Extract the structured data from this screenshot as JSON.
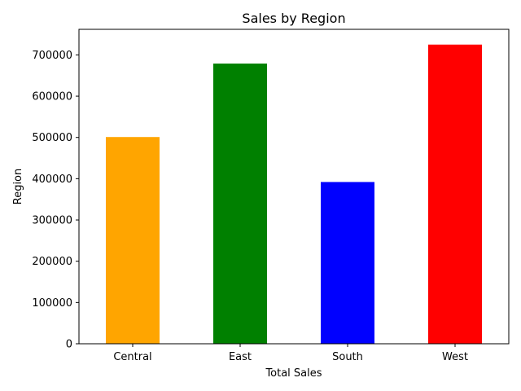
{
  "chart_data": {
    "type": "bar",
    "title": "Sales by Region",
    "xlabel": "Total Sales",
    "ylabel": "Region",
    "categories": [
      "Central",
      "East",
      "South",
      "West"
    ],
    "values": [
      501000,
      679000,
      392000,
      725000
    ],
    "colors": [
      "#ffa500",
      "#008000",
      "#0000ff",
      "#ff0000"
    ],
    "ylim": [
      0,
      762000
    ],
    "yticks": [
      0,
      100000,
      200000,
      300000,
      400000,
      500000,
      600000,
      700000
    ],
    "ytick_labels": [
      "0",
      "100000",
      "200000",
      "300000",
      "400000",
      "500000",
      "600000",
      "700000"
    ],
    "grid": false,
    "legend": "none"
  }
}
